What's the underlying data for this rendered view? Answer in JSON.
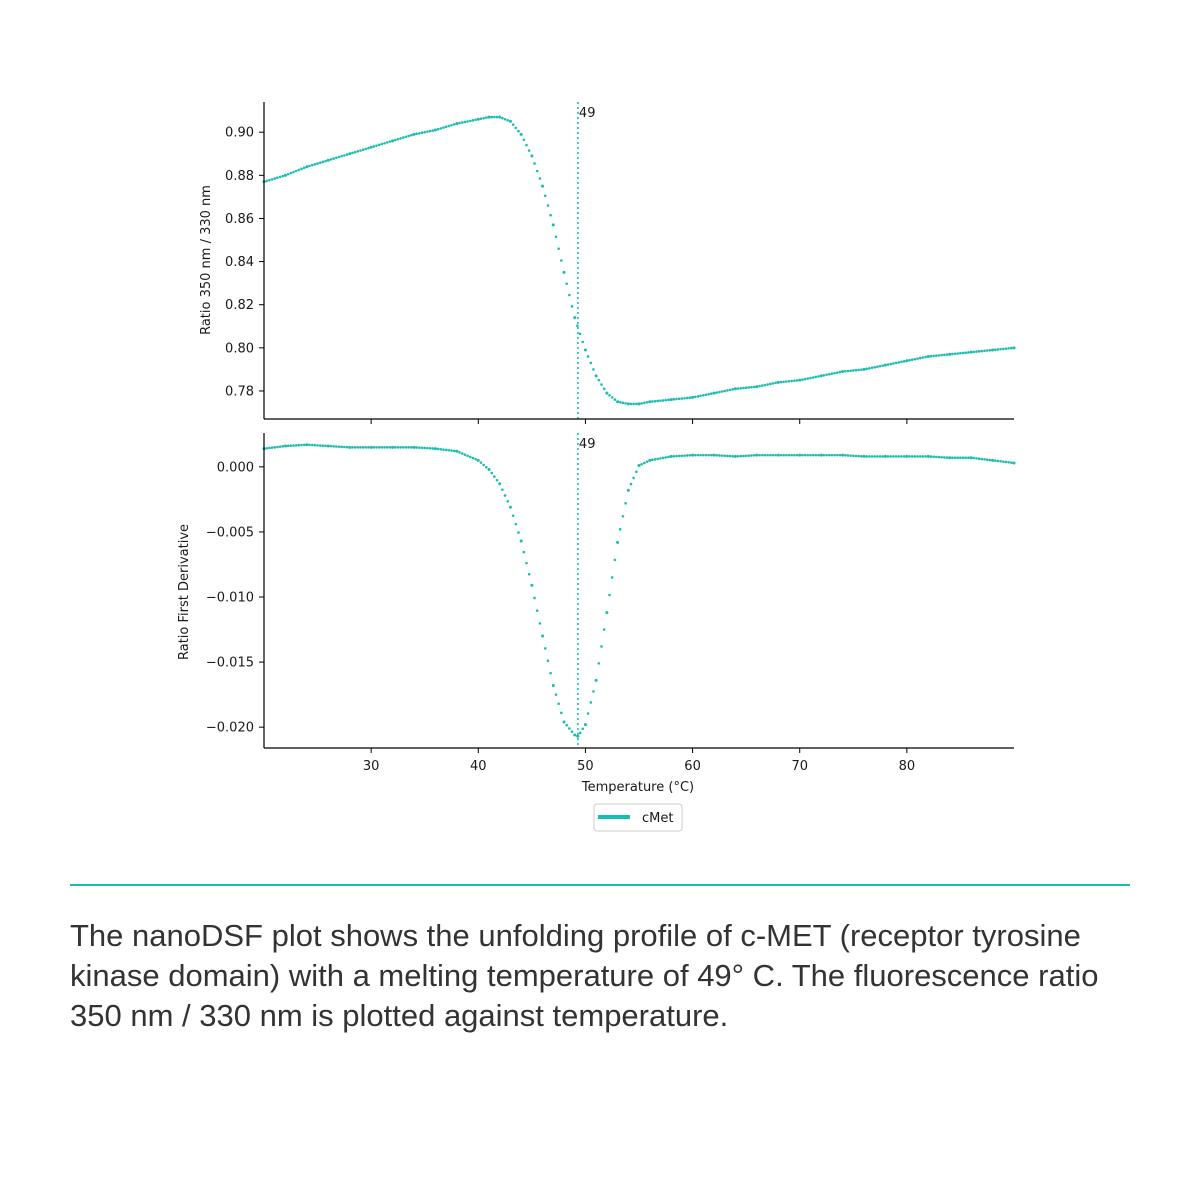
{
  "chart_data": [
    {
      "type": "scatter",
      "panel": "top",
      "ylabel": "Ratio 350 nm / 330 nm",
      "xlim": [
        20,
        90
      ],
      "ylim": [
        0.767,
        0.914
      ],
      "yticks": [
        "0.78",
        "0.80",
        "0.82",
        "0.84",
        "0.86",
        "0.88",
        "0.90"
      ],
      "xticks": [
        30,
        40,
        50,
        60,
        70,
        80
      ],
      "vline": {
        "x": 49.3,
        "label": "49"
      },
      "series": [
        {
          "name": "cMet",
          "color": "#1bbdb0",
          "x": [
            20,
            22,
            24,
            26,
            28,
            30,
            32,
            34,
            36,
            38,
            40,
            41,
            42,
            43,
            44,
            45,
            46,
            47,
            48,
            49,
            50,
            51,
            52,
            53,
            54,
            55,
            56,
            58,
            60,
            62,
            64,
            66,
            68,
            70,
            72,
            74,
            76,
            78,
            80,
            82,
            84,
            86,
            88,
            90
          ],
          "y": [
            0.877,
            0.88,
            0.884,
            0.887,
            0.89,
            0.893,
            0.896,
            0.899,
            0.901,
            0.904,
            0.906,
            0.907,
            0.907,
            0.905,
            0.899,
            0.889,
            0.875,
            0.857,
            0.835,
            0.814,
            0.799,
            0.787,
            0.779,
            0.775,
            0.774,
            0.774,
            0.775,
            0.776,
            0.777,
            0.779,
            0.781,
            0.782,
            0.784,
            0.785,
            0.787,
            0.789,
            0.79,
            0.792,
            0.794,
            0.796,
            0.797,
            0.798,
            0.799,
            0.8
          ]
        }
      ]
    },
    {
      "type": "scatter",
      "panel": "bottom",
      "xlabel": "Temperature (°C)",
      "ylabel": "Ratio First Derivative",
      "xlim": [
        20,
        90
      ],
      "ylim": [
        -0.0216,
        0.0026
      ],
      "yticks": [
        "0.000",
        "−0.005",
        "−0.010",
        "−0.015",
        "−0.020"
      ],
      "xticks": [
        30,
        40,
        50,
        60,
        70,
        80
      ],
      "vline": {
        "x": 49.3,
        "label": "49"
      },
      "series": [
        {
          "name": "cMet",
          "color": "#1bbdb0",
          "x": [
            20,
            22,
            24,
            26,
            28,
            30,
            32,
            34,
            36,
            38,
            40,
            41,
            42,
            43,
            44,
            45,
            46,
            47,
            48,
            49,
            49.3,
            50,
            51,
            52,
            53,
            54,
            55,
            56,
            58,
            60,
            62,
            64,
            66,
            68,
            70,
            72,
            74,
            76,
            78,
            80,
            82,
            84,
            86,
            88,
            90
          ],
          "y": [
            0.0014,
            0.0016,
            0.0017,
            0.0016,
            0.0015,
            0.0015,
            0.0015,
            0.0015,
            0.0014,
            0.0012,
            0.0005,
            -0.0002,
            -0.0013,
            -0.0031,
            -0.0057,
            -0.0091,
            -0.013,
            -0.0168,
            -0.0196,
            -0.0206,
            -0.0207,
            -0.0198,
            -0.0164,
            -0.0112,
            -0.0058,
            -0.0018,
            0.0001,
            0.0005,
            0.0008,
            0.0009,
            0.0009,
            0.0008,
            0.0009,
            0.0009,
            0.0009,
            0.0009,
            0.0009,
            0.0008,
            0.0008,
            0.0008,
            0.0008,
            0.0007,
            0.0007,
            0.0005,
            0.0003
          ]
        }
      ]
    }
  ],
  "legend": {
    "label": "cMet",
    "color": "#1bbdb0"
  },
  "caption": "The nanoDSF plot shows the unfolding profile of c-MET (receptor tyrosine kinase domain) with a melting temperature of 49° C. The fluorescence ratio 350 nm / 330 nm is plotted against temperature."
}
